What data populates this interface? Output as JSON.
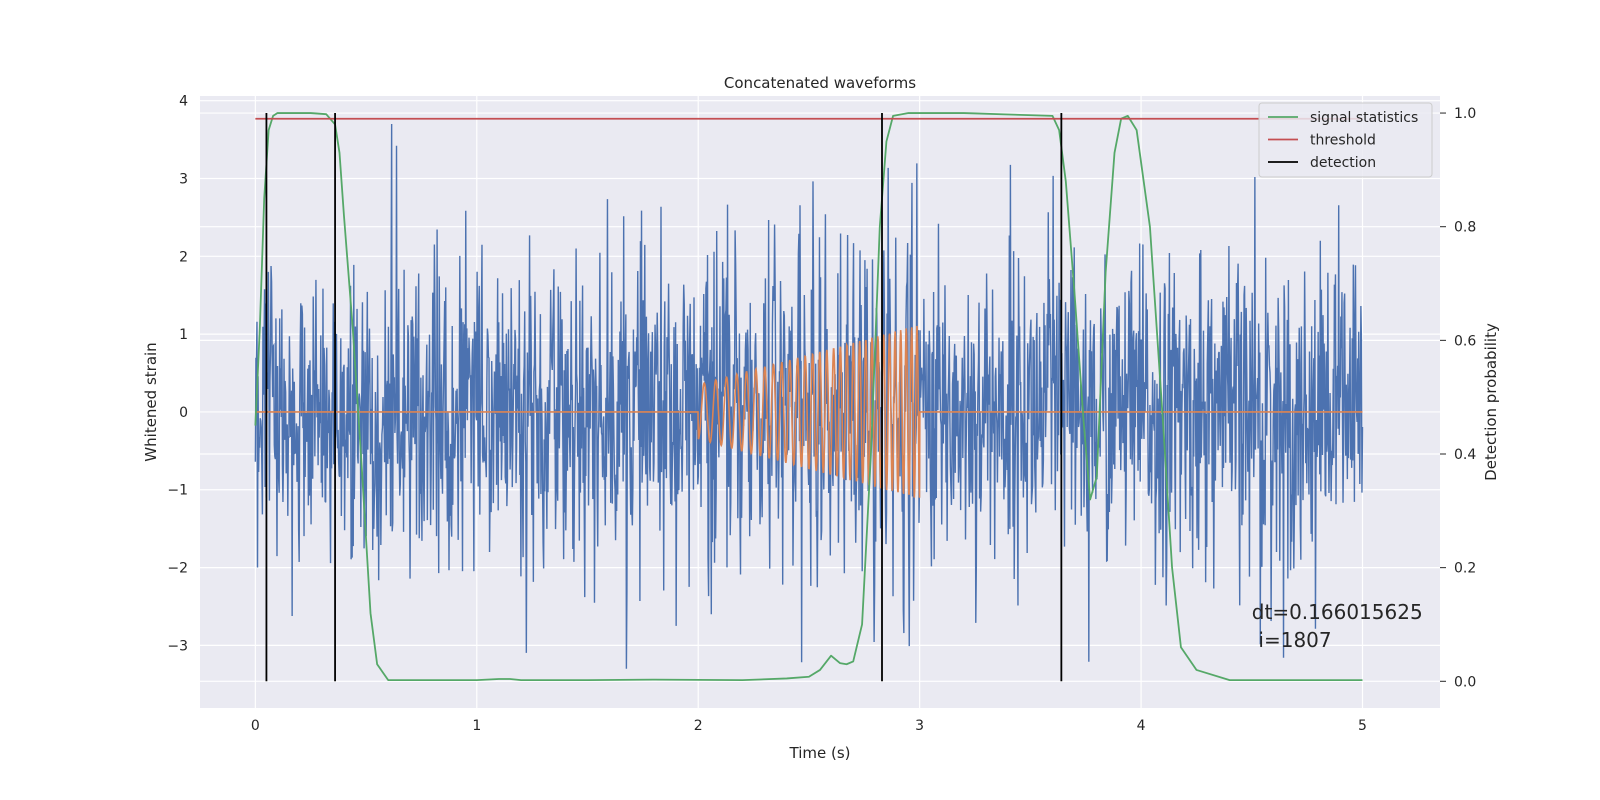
{
  "chart_data": {
    "type": "line",
    "title": "Concatenated waveforms",
    "xlabel": "Time (s)",
    "ylabel_left": "Whitened strain",
    "ylabel_right": "Detection probability",
    "xlim": [
      -0.25,
      5.35
    ],
    "ylim_left": [
      -3.805,
      4.06
    ],
    "ylim_right": [
      -0.047,
      1.03
    ],
    "x_ticks": [
      0,
      1,
      2,
      3,
      4,
      5
    ],
    "y_left_ticks": [
      -3,
      -2,
      -1,
      0,
      1,
      2,
      3,
      4
    ],
    "y_right_ticks": [
      0.0,
      0.2,
      0.4,
      0.6,
      0.8,
      1.0
    ],
    "grid": true,
    "legend_position": "top-right",
    "series": [
      {
        "name": "",
        "axis": "left",
        "color": "#4c72b0",
        "description_kind": "noise",
        "x_range": [
          0,
          5
        ],
        "samples": 2048,
        "amplitude_std": 1.0
      },
      {
        "name": "",
        "axis": "left",
        "color": "#dd8452",
        "description_kind": "chirp",
        "x_range": [
          0,
          5
        ],
        "chirp_start": 2.0,
        "chirp_end": 3.0,
        "amp_start": 0.35,
        "amp_end": 1.12,
        "freq_start": 18,
        "freq_end": 42
      },
      {
        "name": "signal statistics",
        "axis": "right",
        "color": "#55a868",
        "x": [
          0.0,
          0.02,
          0.04,
          0.06,
          0.08,
          0.1,
          0.15,
          0.25,
          0.32,
          0.36,
          0.38,
          0.4,
          0.44,
          0.48,
          0.52,
          0.55,
          0.6,
          0.8,
          1.0,
          1.1,
          1.15,
          1.2,
          1.5,
          1.8,
          2.2,
          2.4,
          2.5,
          2.55,
          2.6,
          2.64,
          2.67,
          2.7,
          2.74,
          2.78,
          2.82,
          2.85,
          2.88,
          2.95,
          3.2,
          3.6,
          3.63,
          3.66,
          3.7,
          3.74,
          3.77,
          3.8,
          3.84,
          3.88,
          3.91,
          3.94,
          3.98,
          4.04,
          4.1,
          4.14,
          4.18,
          4.25,
          4.4,
          4.6,
          5.0
        ],
        "y": [
          0.45,
          0.62,
          0.85,
          0.97,
          0.995,
          1.0,
          1.0,
          1.0,
          0.998,
          0.98,
          0.93,
          0.82,
          0.62,
          0.38,
          0.12,
          0.03,
          0.002,
          0.002,
          0.002,
          0.004,
          0.004,
          0.002,
          0.002,
          0.003,
          0.002,
          0.005,
          0.008,
          0.02,
          0.045,
          0.032,
          0.03,
          0.035,
          0.1,
          0.4,
          0.8,
          0.95,
          0.995,
          1.0,
          1.0,
          0.995,
          0.97,
          0.88,
          0.68,
          0.46,
          0.32,
          0.36,
          0.72,
          0.93,
          0.99,
          0.995,
          0.97,
          0.8,
          0.45,
          0.2,
          0.06,
          0.02,
          0.002,
          0.002,
          0.002
        ]
      },
      {
        "name": "threshold",
        "axis": "right",
        "color": "#c44e52",
        "x": [
          0,
          5
        ],
        "y": [
          0.99,
          0.99
        ]
      },
      {
        "name": "detection",
        "axis": "right",
        "color": "#000000",
        "kind": "vlines",
        "x": [
          0.05,
          0.36,
          2.83,
          3.64
        ],
        "ymin": 0.0,
        "ymax": 1.0
      }
    ],
    "annotations": [
      {
        "text": "dt=0.166015625",
        "x": 4.5,
        "y_right": 0.11
      },
      {
        "text": "i=1807",
        "x": 4.53,
        "y_right": 0.06
      }
    ]
  }
}
